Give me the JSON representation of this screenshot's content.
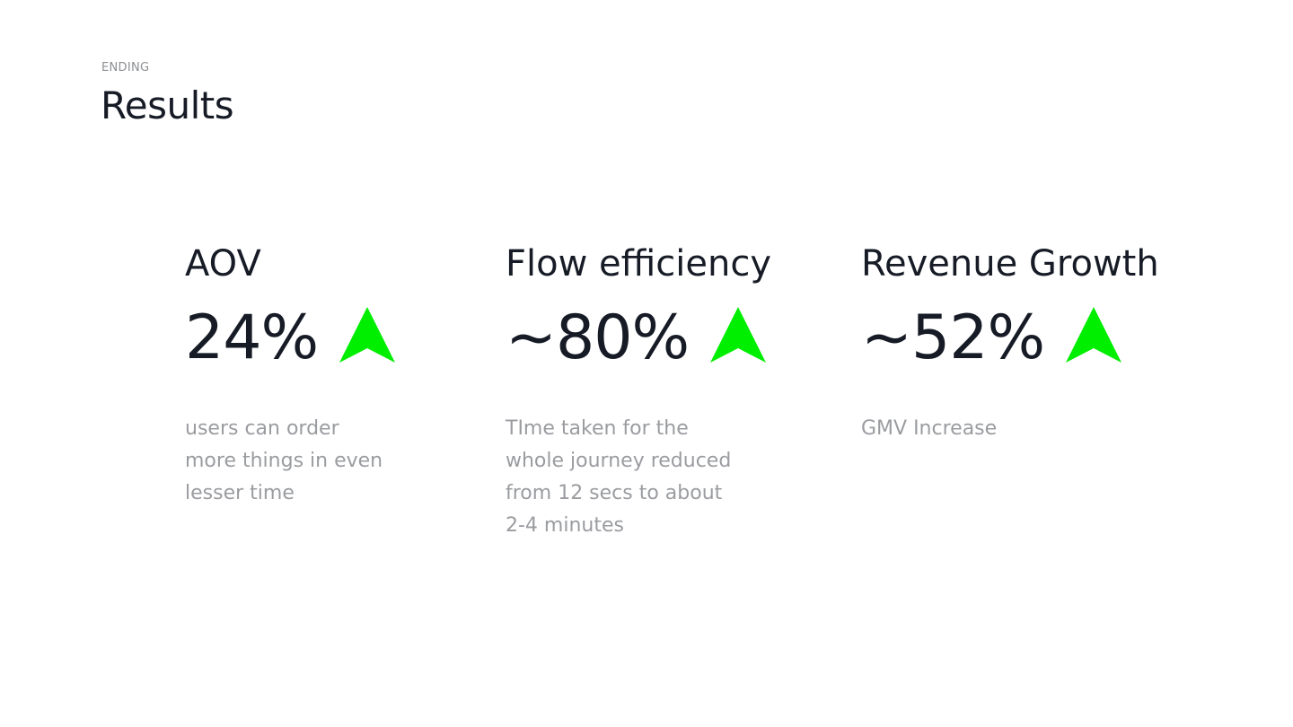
{
  "header": {
    "eyebrow": "ENDING",
    "title": "Results"
  },
  "colors": {
    "accent_up": "#00ee00",
    "text_dark": "#161b26",
    "text_muted": "#9a9ca0"
  },
  "metrics": [
    {
      "label": "AOV",
      "value": "24%",
      "trend_icon": "up-arrow-icon",
      "description": "users can order\nmore things in even\nlesser time"
    },
    {
      "label": "Flow efficiency",
      "value": "~80%",
      "trend_icon": "up-arrow-icon",
      "description": "TIme taken for the\nwhole journey reduced\nfrom 12 secs to about\n2-4 minutes"
    },
    {
      "label": "Revenue Growth",
      "value": "~52%",
      "trend_icon": "up-arrow-icon",
      "description": "GMV Increase"
    }
  ]
}
